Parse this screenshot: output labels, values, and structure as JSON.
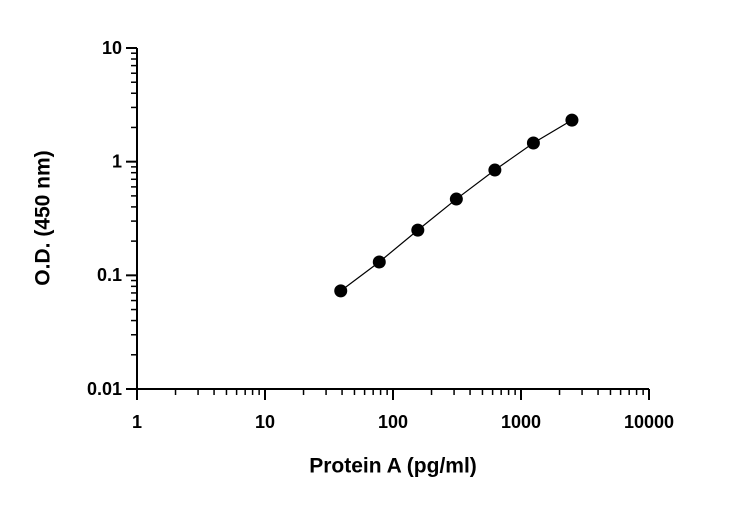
{
  "chart_data": {
    "type": "line",
    "x_label": "Protein A (pg/ml)",
    "y_label": "O.D. (450 nm)",
    "x_log": true,
    "y_log": true,
    "minor_ticks": true,
    "markers": true,
    "xlim": [
      1,
      10000
    ],
    "xticks": [
      1,
      10,
      100,
      1000,
      10000
    ],
    "ylim": [
      0.01,
      10
    ],
    "yticks": [
      0.01,
      0.1,
      1,
      10
    ],
    "series": [
      {
        "color": "#000000",
        "x": [
          39.06,
          78.13,
          156.25,
          312.5,
          625,
          1250,
          2500
        ],
        "values": [
          0.073,
          0.131,
          0.25,
          0.469,
          0.844,
          1.46,
          2.32
        ]
      }
    ]
  }
}
